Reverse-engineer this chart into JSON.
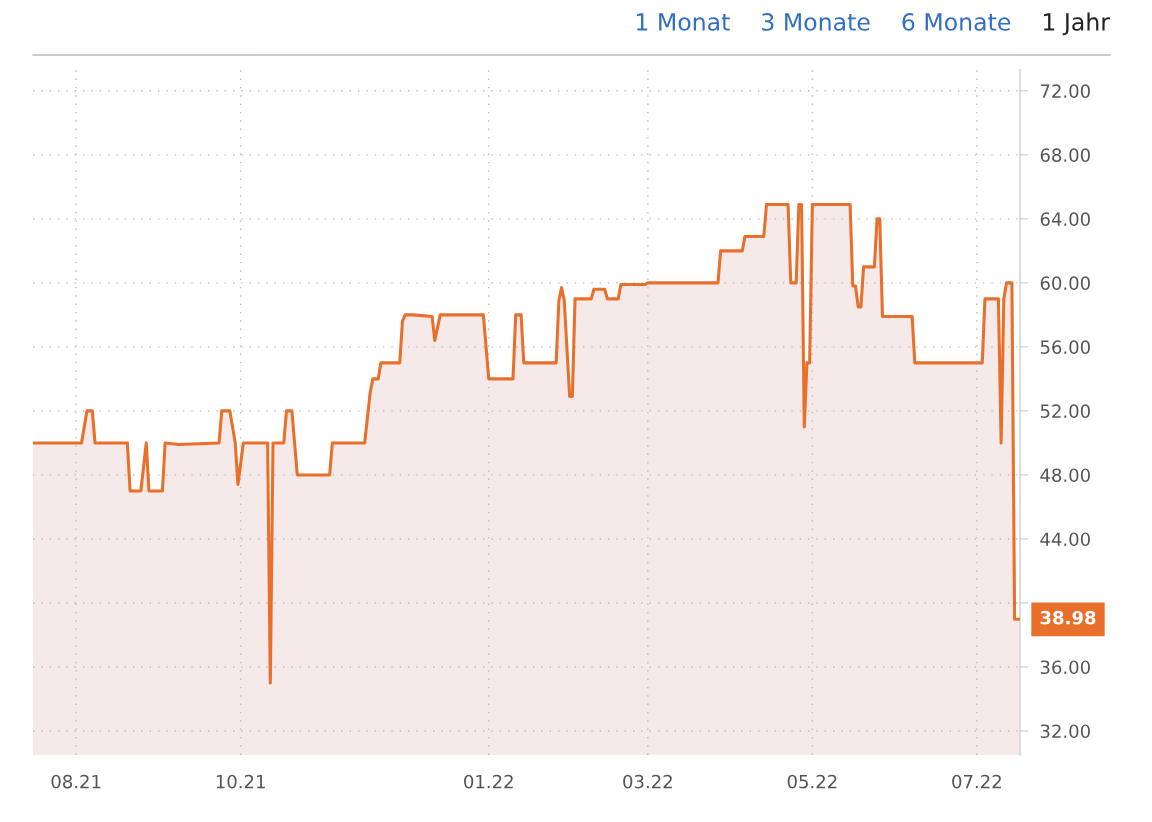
{
  "chart_data": {
    "type": "area",
    "x": [
      "2021-07-16",
      "2021-08-03",
      "2021-08-05",
      "2021-08-07",
      "2021-08-08",
      "2021-08-20",
      "2021-08-21",
      "2021-08-25",
      "2021-08-27",
      "2021-08-28",
      "2021-09-02",
      "2021-09-03",
      "2021-09-08",
      "2021-09-23",
      "2021-09-24",
      "2021-09-27",
      "2021-09-29",
      "2021-09-30",
      "2021-10-02",
      "2021-10-11",
      "2021-10-12",
      "2021-10-13",
      "2021-10-17",
      "2021-10-18",
      "2021-10-20",
      "2021-10-22",
      "2021-11-03",
      "2021-11-04",
      "2021-11-16",
      "2021-11-18",
      "2021-11-19",
      "2021-11-21",
      "2021-11-22",
      "2021-11-29",
      "2021-11-30",
      "2021-12-01",
      "2021-12-04",
      "2021-12-11",
      "2021-12-12",
      "2021-12-14",
      "2021-12-30",
      "2022-01-01",
      "2022-01-10",
      "2022-01-11",
      "2022-01-13",
      "2022-01-14",
      "2022-01-26",
      "2022-01-27",
      "2022-01-28",
      "2022-01-29",
      "2022-01-31",
      "2022-02-01",
      "2022-02-02",
      "2022-02-08",
      "2022-02-09",
      "2022-02-13",
      "2022-02-14",
      "2022-02-18",
      "2022-02-19",
      "2022-02-28",
      "2022-03-01",
      "2022-03-27",
      "2022-03-28",
      "2022-04-05",
      "2022-04-06",
      "2022-04-13",
      "2022-04-14",
      "2022-04-22",
      "2022-04-23",
      "2022-04-25",
      "2022-04-26",
      "2022-04-27",
      "2022-04-28",
      "2022-04-29",
      "2022-04-30",
      "2022-05-01",
      "2022-05-15",
      "2022-05-16",
      "2022-05-17",
      "2022-05-18",
      "2022-05-19",
      "2022-05-20",
      "2022-05-24",
      "2022-05-25",
      "2022-05-26",
      "2022-05-27",
      "2022-06-07",
      "2022-06-08",
      "2022-07-03",
      "2022-07-04",
      "2022-07-09",
      "2022-07-10",
      "2022-07-11",
      "2022-07-12",
      "2022-07-14",
      "2022-07-15",
      "2022-07-17"
    ],
    "series": [
      {
        "color": "#e8702a",
        "values": [
          50,
          50,
          52,
          52,
          50,
          50,
          47,
          47,
          50,
          47,
          47,
          50,
          49.9,
          50,
          52,
          52,
          50,
          47.4,
          50,
          50,
          35,
          50,
          50,
          52,
          52,
          48,
          48,
          50,
          50,
          53.1,
          54,
          54,
          55,
          55,
          57.6,
          58,
          58,
          57.9,
          56.4,
          58,
          58,
          54,
          54,
          58,
          58,
          55,
          55,
          58.9,
          59.7,
          58.9,
          52.9,
          52.9,
          59,
          59,
          59.6,
          59.6,
          59,
          59,
          59.9,
          59.9,
          60,
          60,
          62,
          62,
          62.9,
          62.9,
          64.9,
          64.9,
          60,
          60,
          64.9,
          64.9,
          51,
          55,
          55,
          64.9,
          64.9,
          59.8,
          59.8,
          58.5,
          58.5,
          61,
          61,
          64,
          64,
          57.9,
          57.9,
          55,
          55,
          59,
          59,
          50,
          59,
          60,
          60,
          38.98,
          38.98
        ]
      }
    ],
    "xlim": [
      "2021-07-16",
      "2022-07-17"
    ],
    "xticks": [
      {
        "value": "2021-08-01",
        "label": "08.21"
      },
      {
        "value": "2021-10-01",
        "label": "10.21"
      },
      {
        "value": "2022-01-01",
        "label": "01.22"
      },
      {
        "value": "2022-03-01",
        "label": "03.22"
      },
      {
        "value": "2022-05-01",
        "label": "05.22"
      },
      {
        "value": "2022-07-01",
        "label": "07.22"
      }
    ],
    "ylim": [
      30.5,
      73.3
    ],
    "yticks": [
      {
        "value": 32,
        "label": "32.00"
      },
      {
        "value": 36,
        "label": "36.00"
      },
      {
        "value": 40,
        "label": null
      },
      {
        "value": 44,
        "label": "44.00"
      },
      {
        "value": 48,
        "label": "48.00"
      },
      {
        "value": 52,
        "label": "52.00"
      },
      {
        "value": 56,
        "label": "56.00"
      },
      {
        "value": 60,
        "label": "60.00"
      },
      {
        "value": 64,
        "label": "64.00"
      },
      {
        "value": 68,
        "label": "68.00"
      },
      {
        "value": 72,
        "label": "72.00"
      }
    ],
    "grid": true,
    "annotations": [
      "1 Monat",
      "3 Monate",
      "6 Monate",
      "1 Jahr",
      {
        "text": "38.98",
        "x": "2022-07-17",
        "y": 38.98
      }
    ]
  }
}
